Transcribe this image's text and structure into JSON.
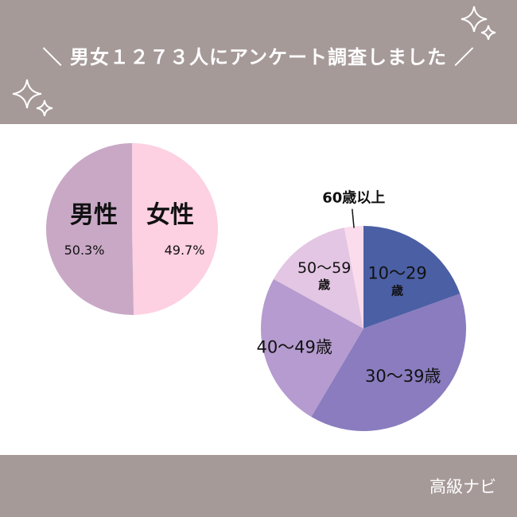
{
  "header": {
    "title": "＼ 男女１２７３人にアンケート調査しました ／"
  },
  "footer": {
    "brand": "高級ナビ"
  },
  "icons": [
    "sparkle-icon",
    "sparkle-icon"
  ],
  "colors": {
    "band": "#a69a99",
    "male": "#c9a8c6",
    "female": "#fdd0e2",
    "age10_29": "#4b5fa4",
    "age30_39": "#8a7cbe",
    "age40_49": "#b59bcf",
    "age50_59": "#e3c6e3",
    "age60": "#fbdcec"
  },
  "chart_data": [
    {
      "type": "pie",
      "title": "",
      "labels": [
        "男性",
        "女性"
      ],
      "values": [
        50.3,
        49.7
      ],
      "value_labels": [
        "50.3%",
        "49.7%"
      ]
    },
    {
      "type": "pie",
      "title": "",
      "labels": [
        "10～29歳",
        "30～39歳",
        "40～49歳",
        "50～59歳",
        "60歳以上"
      ],
      "label_lines": [
        [
          "10～29",
          "歳"
        ],
        [
          "30～39歳"
        ],
        [
          "40～49歳"
        ],
        [
          "50～59",
          "歳"
        ],
        [
          "60歳以上"
        ]
      ],
      "values": [
        19.5,
        39.0,
        24.5,
        14.0,
        3.0
      ]
    }
  ]
}
